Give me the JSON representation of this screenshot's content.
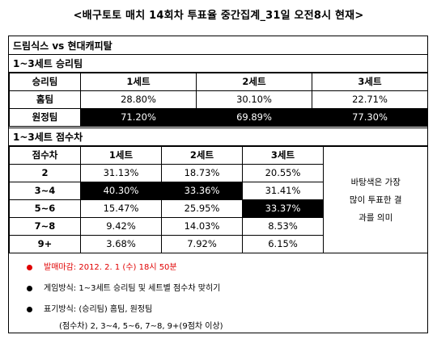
{
  "title": "<배구토토 매치 14회차 투표율 중간집계_31일 오전8시 현재>",
  "match": "드림식스 vs 현대캐피탈",
  "section1": {
    "header": "1~3세트 승리팀",
    "columns": [
      "승리팀",
      "1세트",
      "2세트",
      "3세트"
    ],
    "rows": [
      {
        "label": "홈팀",
        "values": [
          "28.80%",
          "30.10%",
          "22.71%"
        ]
      },
      {
        "label": "원정팀",
        "values": [
          "71.20%",
          "69.89%",
          "77.30%"
        ]
      }
    ]
  },
  "section2": {
    "header": "1~3세트 점수차",
    "columns": [
      "점수차",
      "1세트",
      "2세트",
      "3세트"
    ],
    "rows": [
      {
        "label": "2",
        "values": [
          "31.13%",
          "18.73%",
          "20.55%"
        ]
      },
      {
        "label": "3~4",
        "values": [
          "40.30%",
          "33.36%",
          "31.41%"
        ]
      },
      {
        "label": "5~6",
        "values": [
          "15.47%",
          "25.95%",
          "33.37%"
        ]
      },
      {
        "label": "7~8",
        "values": [
          "9.42%",
          "14.03%",
          "8.53%"
        ]
      },
      {
        "label": "9+",
        "values": [
          "3.68%",
          "7.92%",
          "6.15%"
        ]
      }
    ],
    "note_lines": [
      "바탕색은 가장",
      "많이 투표한 결",
      "과를 의미"
    ]
  },
  "info": {
    "deadline": "발매마감: 2012. 2. 1 (수) 18시 50분",
    "method": "게임방식: 1~3세트 승리팀 및 세트별 점수차 맞히기",
    "notation": "표기방식: (승리팀) 홈팀, 원정팀",
    "notation2": "(점수차) 2, 3~4, 5~6, 7~8, 9+(9점차 이상)"
  },
  "colors": {
    "highlight": "#000000",
    "deadline": "#e00000"
  }
}
